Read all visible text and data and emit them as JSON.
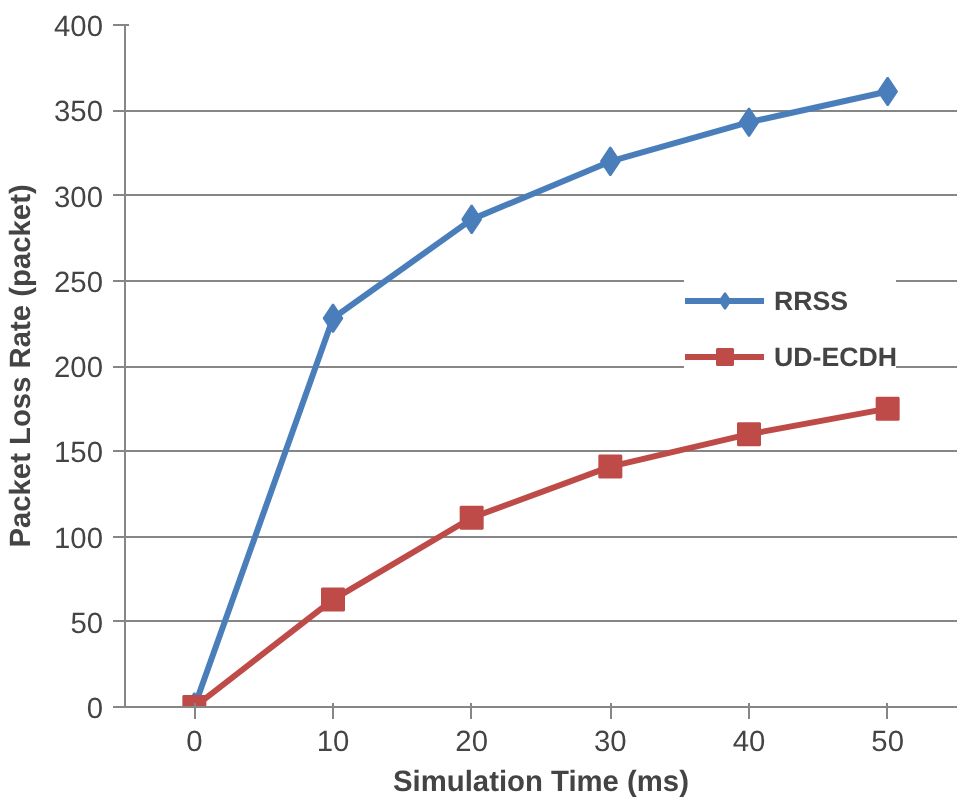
{
  "chart_data": {
    "type": "line",
    "xlabel": "Simulation Time (ms)",
    "ylabel": "Packet Loss Rate (packet)",
    "categories": [
      "0",
      "10",
      "20",
      "30",
      "40",
      "50"
    ],
    "series": [
      {
        "name": "RRSS",
        "color": "#4a7ebb",
        "marker": "diamond",
        "values": [
          0,
          228,
          286,
          320,
          343,
          361
        ]
      },
      {
        "name": "UD-ECDH",
        "color": "#be4b48",
        "marker": "square",
        "values": [
          0,
          63,
          111,
          141,
          160,
          175
        ]
      }
    ],
    "ylim": [
      0,
      400
    ],
    "yticks": [
      0,
      50,
      100,
      150,
      200,
      250,
      300,
      350,
      400
    ],
    "grid": "y",
    "legend": "right",
    "line_style": "solid"
  }
}
